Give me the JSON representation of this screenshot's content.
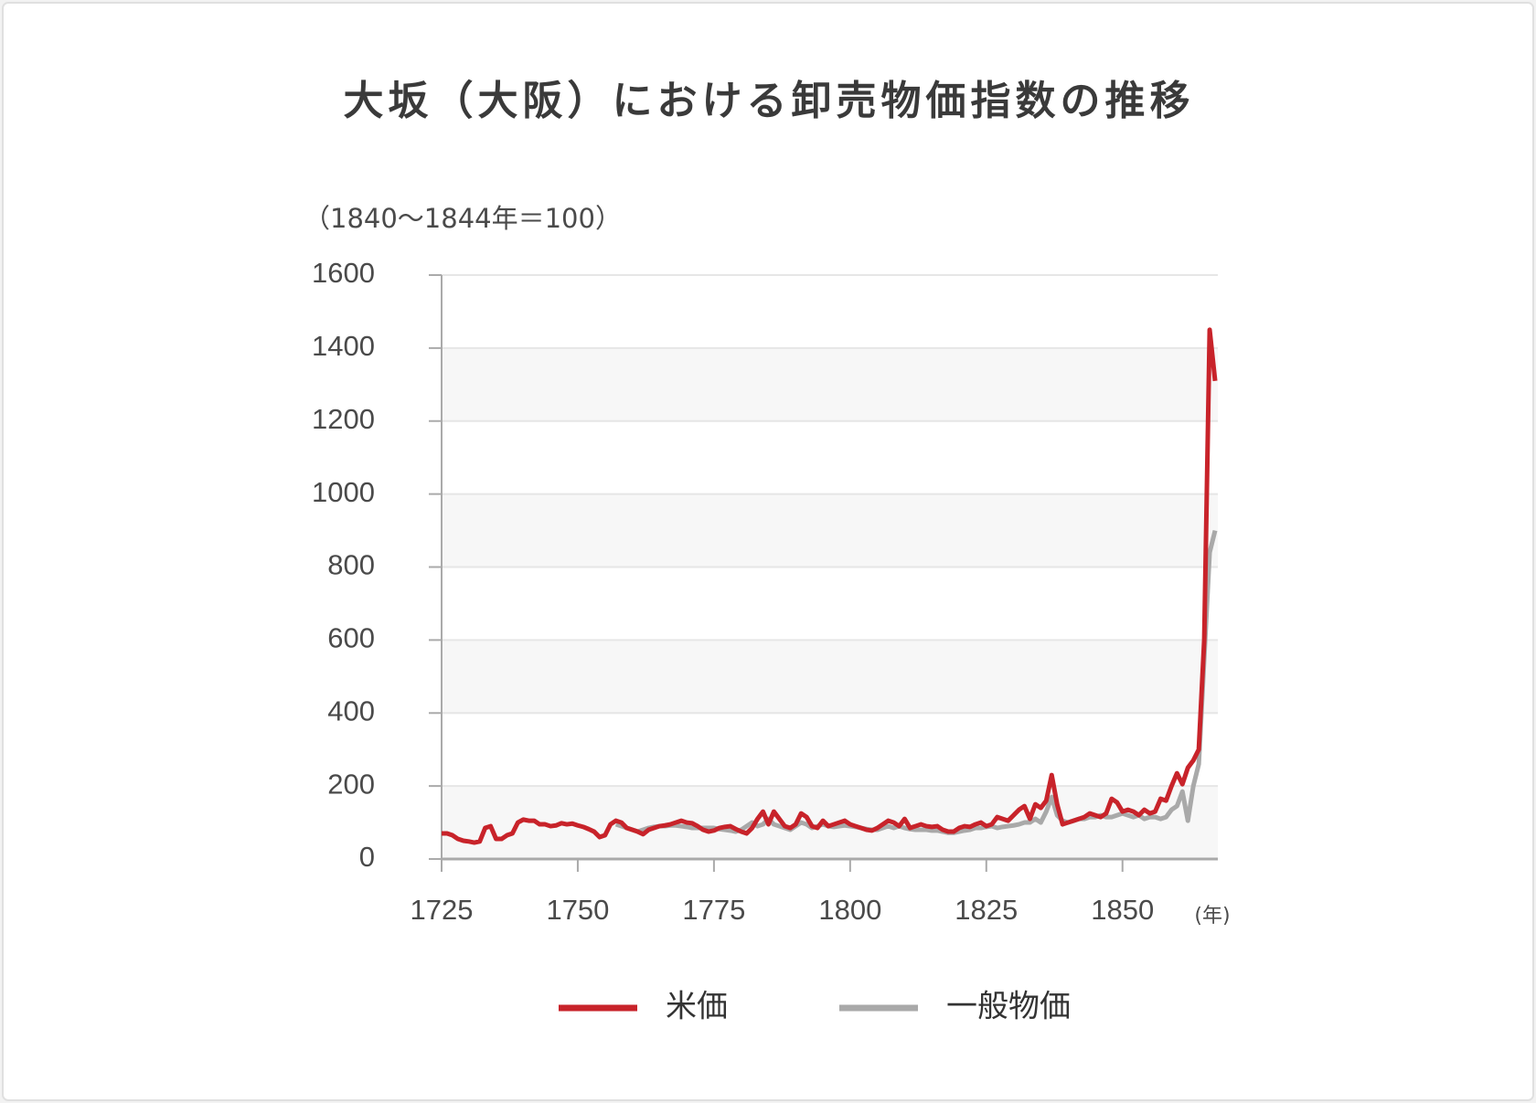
{
  "chart_data": {
    "type": "line",
    "title": "大坂（大阪）における卸売物価指数の推移",
    "y_axis_label": "（1840～1844年＝100）",
    "x_axis_label": "(年)",
    "x": [
      1725,
      1726,
      1727,
      1728,
      1729,
      1730,
      1731,
      1732,
      1733,
      1734,
      1735,
      1736,
      1737,
      1738,
      1739,
      1740,
      1741,
      1742,
      1743,
      1744,
      1745,
      1746,
      1747,
      1748,
      1749,
      1750,
      1751,
      1752,
      1753,
      1754,
      1755,
      1756,
      1757,
      1758,
      1759,
      1760,
      1761,
      1762,
      1763,
      1764,
      1765,
      1766,
      1767,
      1768,
      1769,
      1770,
      1771,
      1772,
      1773,
      1774,
      1775,
      1776,
      1777,
      1778,
      1779,
      1780,
      1781,
      1782,
      1783,
      1784,
      1785,
      1786,
      1787,
      1788,
      1789,
      1790,
      1791,
      1792,
      1793,
      1794,
      1795,
      1796,
      1797,
      1798,
      1799,
      1800,
      1801,
      1802,
      1803,
      1804,
      1805,
      1806,
      1807,
      1808,
      1809,
      1810,
      1811,
      1812,
      1813,
      1814,
      1815,
      1816,
      1817,
      1818,
      1819,
      1820,
      1821,
      1822,
      1823,
      1824,
      1825,
      1826,
      1827,
      1828,
      1829,
      1830,
      1831,
      1832,
      1833,
      1834,
      1835,
      1836,
      1837,
      1838,
      1839,
      1840,
      1841,
      1842,
      1843,
      1844,
      1845,
      1846,
      1847,
      1848,
      1849,
      1850,
      1851,
      1852,
      1853,
      1854,
      1855,
      1856,
      1857,
      1858,
      1859,
      1860,
      1861,
      1862,
      1863,
      1864,
      1865,
      1866,
      1867
    ],
    "series": [
      {
        "name": "米価",
        "color": "#c8232a",
        "values": [
          70,
          70,
          65,
          55,
          50,
          48,
          45,
          48,
          85,
          90,
          55,
          55,
          65,
          70,
          100,
          108,
          105,
          105,
          95,
          95,
          90,
          92,
          98,
          95,
          97,
          92,
          88,
          82,
          75,
          60,
          65,
          95,
          105,
          100,
          85,
          80,
          75,
          68,
          80,
          85,
          90,
          92,
          95,
          100,
          105,
          100,
          98,
          90,
          80,
          75,
          78,
          85,
          88,
          90,
          82,
          75,
          70,
          85,
          110,
          130,
          95,
          130,
          110,
          90,
          85,
          95,
          125,
          115,
          90,
          85,
          105,
          90,
          95,
          100,
          105,
          95,
          90,
          85,
          80,
          78,
          85,
          95,
          105,
          100,
          90,
          110,
          85,
          90,
          95,
          90,
          88,
          90,
          80,
          75,
          75,
          85,
          90,
          88,
          95,
          100,
          90,
          95,
          115,
          110,
          105,
          120,
          135,
          145,
          110,
          150,
          140,
          160,
          230,
          150,
          95,
          100,
          105,
          110,
          115,
          125,
          120,
          115,
          125,
          165,
          155,
          130,
          135,
          130,
          120,
          135,
          125,
          130,
          165,
          160,
          200,
          235,
          205,
          250,
          270,
          300,
          600,
          1450,
          1310
        ]
      },
      {
        "name": "一般物価",
        "color": "#a9a9a9",
        "values": [
          null,
          null,
          null,
          null,
          null,
          null,
          null,
          null,
          null,
          null,
          null,
          null,
          null,
          null,
          null,
          null,
          null,
          null,
          null,
          null,
          null,
          null,
          null,
          null,
          null,
          null,
          null,
          null,
          null,
          null,
          null,
          null,
          95,
          90,
          85,
          80,
          75,
          80,
          85,
          88,
          90,
          90,
          92,
          92,
          90,
          88,
          85,
          85,
          85,
          85,
          85,
          82,
          80,
          78,
          75,
          80,
          90,
          100,
          90,
          95,
          110,
          95,
          90,
          85,
          80,
          90,
          100,
          95,
          85,
          90,
          95,
          90,
          88,
          90,
          92,
          90,
          88,
          85,
          82,
          80,
          80,
          85,
          90,
          85,
          90,
          85,
          82,
          80,
          80,
          80,
          78,
          78,
          75,
          72,
          72,
          75,
          78,
          80,
          85,
          85,
          88,
          90,
          85,
          88,
          90,
          92,
          95,
          100,
          100,
          110,
          100,
          130,
          170,
          120,
          105,
          100,
          105,
          110,
          110,
          115,
          115,
          120,
          115,
          115,
          120,
          125,
          120,
          115,
          120,
          110,
          115,
          115,
          110,
          115,
          135,
          145,
          185,
          105,
          200,
          260,
          550,
          840,
          900
        ]
      }
    ],
    "xlim": [
      1725,
      1867.5
    ],
    "xticks": [
      1725,
      1750,
      1775,
      1800,
      1825,
      1850
    ],
    "ylim": [
      0,
      1600
    ],
    "yticks": [
      0,
      200,
      400,
      600,
      800,
      1000,
      1200,
      1400,
      1600
    ],
    "grid": true
  }
}
